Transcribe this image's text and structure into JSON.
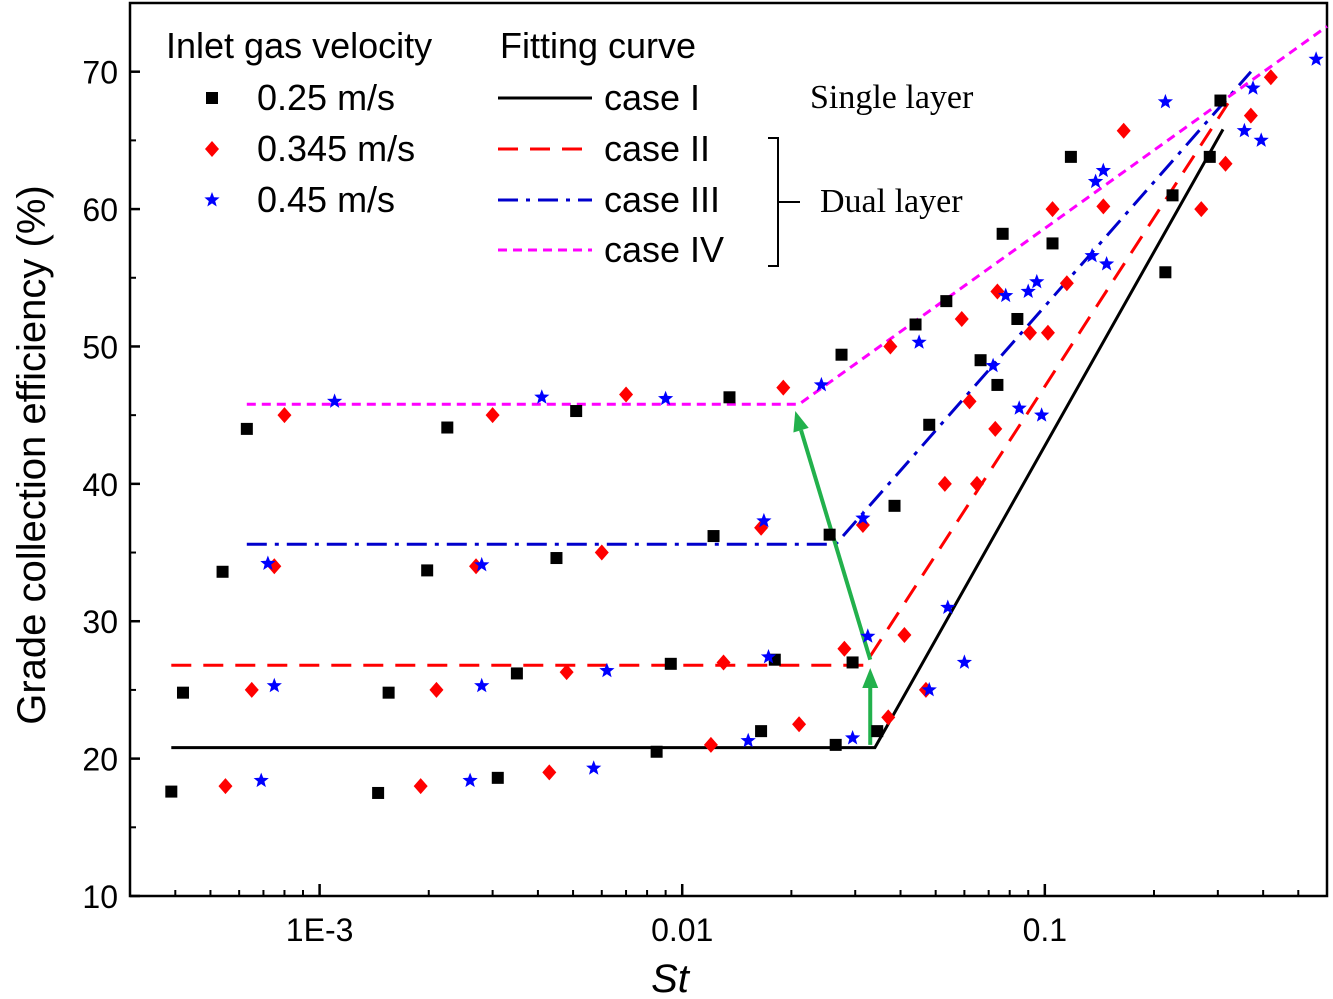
{
  "chart_data": {
    "type": "scatter",
    "xlabel": "St",
    "ylabel": "Grade collection efficiency (%)",
    "x_scale": "log",
    "xlim": [
      0.0003,
      0.6
    ],
    "ylim": [
      10,
      75
    ],
    "x_ticks": [
      0.001,
      0.01,
      0.1
    ],
    "x_tick_labels": [
      "1E-3",
      "0.01",
      "0.1"
    ],
    "y_ticks": [
      10,
      20,
      30,
      40,
      50,
      60,
      70
    ],
    "y_tick_labels": [
      "10",
      "20",
      "30",
      "40",
      "50",
      "60",
      "70"
    ],
    "legend": {
      "placement": "top-left",
      "scatter_title": "Inlet gas velocity",
      "fit_title": "Fitting curve"
    },
    "annotations": {
      "single_layer": "Single layer",
      "dual_layer": "Dual layer"
    },
    "series": [
      {
        "name": "0.25 m/s",
        "marker": "square",
        "color": "#000000",
        "points": [
          [
            0.00039,
            17.6
          ],
          [
            0.00042,
            24.8
          ],
          [
            0.00054,
            33.6
          ],
          [
            0.00063,
            44.0
          ],
          [
            0.00145,
            17.5
          ],
          [
            0.00155,
            24.8
          ],
          [
            0.00198,
            33.7
          ],
          [
            0.00225,
            44.1
          ],
          [
            0.0031,
            18.6
          ],
          [
            0.0035,
            26.2
          ],
          [
            0.0045,
            34.6
          ],
          [
            0.0051,
            45.3
          ],
          [
            0.0085,
            20.5
          ],
          [
            0.0093,
            26.9
          ],
          [
            0.0122,
            36.2
          ],
          [
            0.0135,
            46.3
          ],
          [
            0.0165,
            22.0
          ],
          [
            0.018,
            27.2
          ],
          [
            0.0255,
            36.3
          ],
          [
            0.0275,
            49.4
          ],
          [
            0.0265,
            21.0
          ],
          [
            0.0295,
            27.0
          ],
          [
            0.0345,
            22.0
          ],
          [
            0.0385,
            38.4
          ],
          [
            0.044,
            51.6
          ],
          [
            0.048,
            44.3
          ],
          [
            0.0535,
            53.3
          ],
          [
            0.0665,
            49.0
          ],
          [
            0.074,
            47.2
          ],
          [
            0.0765,
            58.2
          ],
          [
            0.084,
            52.0
          ],
          [
            0.105,
            57.5
          ],
          [
            0.118,
            63.8
          ],
          [
            0.215,
            55.4
          ],
          [
            0.225,
            61.0
          ],
          [
            0.285,
            63.8
          ],
          [
            0.305,
            67.9
          ]
        ]
      },
      {
        "name": "0.345 m/s",
        "marker": "diamond",
        "color": "#ff0000",
        "points": [
          [
            0.00055,
            18.0
          ],
          [
            0.00065,
            25.0
          ],
          [
            0.00075,
            34.0
          ],
          [
            0.0008,
            45.0
          ],
          [
            0.0019,
            18.0
          ],
          [
            0.0021,
            25.0
          ],
          [
            0.0027,
            34.0
          ],
          [
            0.003,
            45.0
          ],
          [
            0.0043,
            19.0
          ],
          [
            0.0048,
            26.3
          ],
          [
            0.006,
            35.0
          ],
          [
            0.007,
            46.5
          ],
          [
            0.012,
            21.0
          ],
          [
            0.013,
            27.0
          ],
          [
            0.0165,
            36.8
          ],
          [
            0.019,
            47.0
          ],
          [
            0.021,
            22.5
          ],
          [
            0.028,
            28.0
          ],
          [
            0.0315,
            37.0
          ],
          [
            0.037,
            23.0
          ],
          [
            0.0375,
            50.0
          ],
          [
            0.041,
            29.0
          ],
          [
            0.047,
            25.0
          ],
          [
            0.053,
            40.0
          ],
          [
            0.059,
            52.0
          ],
          [
            0.062,
            46.0
          ],
          [
            0.065,
            40.0
          ],
          [
            0.073,
            44.0
          ],
          [
            0.074,
            54.0
          ],
          [
            0.091,
            51.0
          ],
          [
            0.102,
            51.0
          ],
          [
            0.105,
            60.0
          ],
          [
            0.115,
            54.6
          ],
          [
            0.145,
            60.2
          ],
          [
            0.165,
            65.7
          ],
          [
            0.27,
            60.0
          ],
          [
            0.315,
            63.3
          ],
          [
            0.37,
            66.8
          ],
          [
            0.42,
            69.6
          ]
        ]
      },
      {
        "name": "0.45 m/s",
        "marker": "star",
        "color": "#0000ff",
        "points": [
          [
            0.00069,
            18.4
          ],
          [
            0.00072,
            34.2
          ],
          [
            0.00075,
            25.3
          ],
          [
            0.0011,
            46.0
          ],
          [
            0.0026,
            18.4
          ],
          [
            0.0028,
            25.3
          ],
          [
            0.0028,
            34.1
          ],
          [
            0.0041,
            46.3
          ],
          [
            0.0057,
            19.3
          ],
          [
            0.0062,
            26.4
          ],
          [
            0.009,
            46.2
          ],
          [
            0.0152,
            21.3
          ],
          [
            0.0168,
            37.3
          ],
          [
            0.0173,
            27.4
          ],
          [
            0.0242,
            47.2
          ],
          [
            0.0295,
            21.5
          ],
          [
            0.0315,
            37.5
          ],
          [
            0.0325,
            28.9
          ],
          [
            0.045,
            50.3
          ],
          [
            0.048,
            25.0
          ],
          [
            0.054,
            31.0
          ],
          [
            0.06,
            27.0
          ],
          [
            0.072,
            48.6
          ],
          [
            0.078,
            53.7
          ],
          [
            0.085,
            45.5
          ],
          [
            0.09,
            54.0
          ],
          [
            0.095,
            54.7
          ],
          [
            0.098,
            45.0
          ],
          [
            0.135,
            56.6
          ],
          [
            0.138,
            62.0
          ],
          [
            0.145,
            62.8
          ],
          [
            0.148,
            56.0
          ],
          [
            0.215,
            67.8
          ],
          [
            0.355,
            65.7
          ],
          [
            0.375,
            68.8
          ],
          [
            0.395,
            65.0
          ],
          [
            0.56,
            70.9
          ]
        ]
      }
    ],
    "fitting_curves": [
      {
        "name": "case I",
        "style": "solid",
        "color": "#000000",
        "points": [
          [
            0.00039,
            20.8
          ],
          [
            0.034,
            20.8
          ],
          [
            0.31,
            65.8
          ]
        ]
      },
      {
        "name": "case II",
        "style": "dashed",
        "color": "#ff0000",
        "points": [
          [
            0.00039,
            26.8
          ],
          [
            0.0318,
            26.8
          ],
          [
            0.32,
            67.7
          ]
        ]
      },
      {
        "name": "case III",
        "style": "dash-dot",
        "color": "#0000cc",
        "points": [
          [
            0.00063,
            35.6
          ],
          [
            0.0265,
            35.6
          ],
          [
            0.37,
            70.0
          ]
        ]
      },
      {
        "name": "case IV",
        "style": "short-dash",
        "color": "#ff00ff",
        "points": [
          [
            0.00063,
            45.8
          ],
          [
            0.021,
            45.8
          ],
          [
            0.6,
            73.3
          ]
        ]
      }
    ],
    "arrows": [
      {
        "color": "#22b14c",
        "from": [
          0.033,
          21.0
        ],
        "to": [
          0.033,
          26.6
        ]
      },
      {
        "color": "#22b14c",
        "from": [
          0.033,
          27.2
        ],
        "to": [
          0.0205,
          45.3
        ]
      }
    ]
  }
}
